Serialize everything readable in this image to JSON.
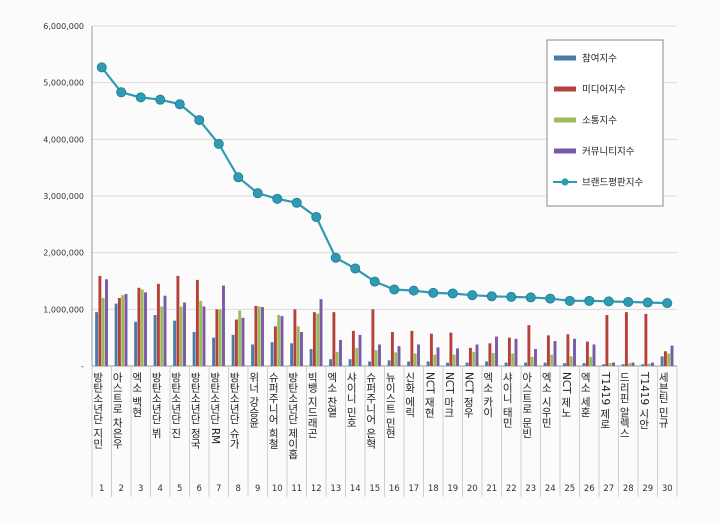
{
  "chart_data": {
    "type": "bar",
    "ylim": [
      0,
      6000000
    ],
    "y_ticks": [
      "6,000,000",
      "5,000,000",
      "4,000,000",
      "3,000,000",
      "2,000,000",
      "1,000,000",
      "-"
    ],
    "y_tick_values": [
      6000000,
      5000000,
      4000000,
      3000000,
      2000000,
      1000000,
      0
    ],
    "grid": true,
    "legend_position": "top-right",
    "ranks": [
      "1",
      "2",
      "3",
      "4",
      "5",
      "6",
      "7",
      "8",
      "9",
      "10",
      "11",
      "12",
      "13",
      "14",
      "15",
      "16",
      "17",
      "18",
      "19",
      "20",
      "21",
      "22",
      "23",
      "24",
      "25",
      "26",
      "27",
      "28",
      "29",
      "30"
    ],
    "categories": [
      "방탄소년단 지민",
      "아스트로 차은우",
      "엑소 백현",
      "방탄소년단 뷔",
      "방탄소년단 진",
      "방탄소년단 정국",
      "방탄소년단 RM",
      "방탄소년단 슈가",
      "위너 강승윤",
      "슈퍼주니어 희철",
      "방탄소년단 제이홉",
      "빅뱅 지드래곤",
      "엑소 찬열",
      "샤이니 민호",
      "슈퍼주니어 은혁",
      "뉴이스트 민현",
      "신화 에릭",
      "NCT 재현",
      "NCT 마크",
      "NCT 정우",
      "엑소 카이",
      "샤이니 태민",
      "아스트로 문빈",
      "엑소 시우민",
      "NCT 제노",
      "엑소 세훈",
      "T1419 제로",
      "드리핀 알렉스",
      "T1419 시안",
      "세븐틴 민규"
    ],
    "series": [
      {
        "name": "참여지수",
        "color": "#4a7ca8",
        "values": [
          950000,
          1100000,
          780000,
          900000,
          800000,
          600000,
          500000,
          550000,
          380000,
          420000,
          400000,
          300000,
          120000,
          120000,
          80000,
          100000,
          80000,
          80000,
          60000,
          60000,
          80000,
          60000,
          60000,
          60000,
          50000,
          50000,
          30000,
          30000,
          30000,
          170000
        ]
      },
      {
        "name": "미디어지수",
        "color": "#b5413a",
        "values": [
          1590000,
          1200000,
          1380000,
          1450000,
          1590000,
          1520000,
          1000000,
          820000,
          1060000,
          700000,
          1000000,
          950000,
          950000,
          620000,
          1000000,
          600000,
          620000,
          570000,
          590000,
          320000,
          400000,
          500000,
          720000,
          540000,
          560000,
          430000,
          900000,
          950000,
          920000,
          260000
        ]
      },
      {
        "name": "소통지수",
        "color": "#9bbb59",
        "values": [
          1200000,
          1250000,
          1350000,
          1050000,
          1050000,
          1150000,
          1000000,
          980000,
          1050000,
          900000,
          700000,
          920000,
          250000,
          320000,
          280000,
          240000,
          220000,
          200000,
          200000,
          250000,
          230000,
          220000,
          160000,
          200000,
          170000,
          160000,
          50000,
          50000,
          40000,
          220000
        ]
      },
      {
        "name": "커뮤니티지수",
        "color": "#7a5aa6",
        "values": [
          1530000,
          1270000,
          1300000,
          1240000,
          1120000,
          1050000,
          1420000,
          850000,
          1040000,
          880000,
          600000,
          1180000,
          460000,
          550000,
          380000,
          350000,
          380000,
          330000,
          310000,
          380000,
          520000,
          480000,
          300000,
          440000,
          480000,
          380000,
          60000,
          60000,
          60000,
          360000
        ]
      }
    ],
    "line": {
      "name": "브랜드평판지수",
      "color": "#2e9bb3",
      "values": [
        5270000,
        4830000,
        4740000,
        4700000,
        4620000,
        4340000,
        3920000,
        3330000,
        3050000,
        2950000,
        2880000,
        2630000,
        1910000,
        1720000,
        1490000,
        1350000,
        1330000,
        1290000,
        1280000,
        1250000,
        1230000,
        1220000,
        1210000,
        1190000,
        1150000,
        1150000,
        1140000,
        1130000,
        1120000,
        1110000
      ]
    }
  }
}
